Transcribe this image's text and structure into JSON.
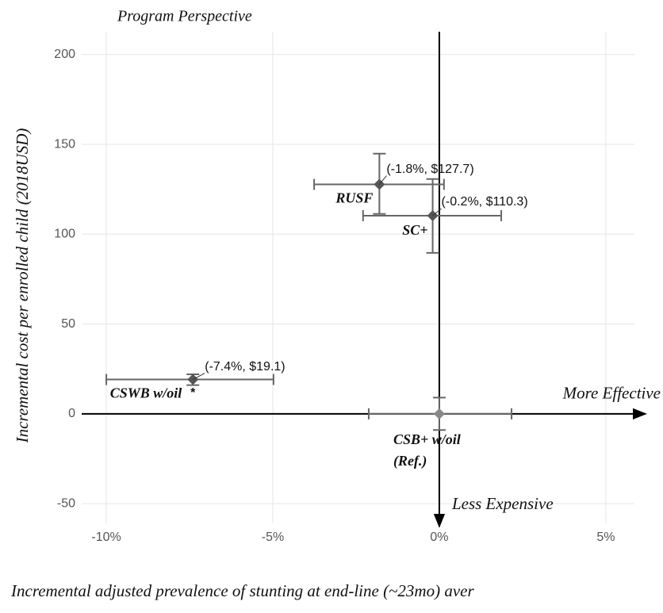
{
  "chart_data": {
    "type": "scatter",
    "title": "Program Perspective",
    "x_label": "Incremental adjusted prevalence of stunting at end-line (~23mo) aver",
    "y_label": "Incremental cost per enrolled child (2018USD)",
    "annotations": {
      "x_direction": "More Effective",
      "y_direction": "Less Expensive",
      "significance": "*"
    },
    "xlim": [
      -10.74,
      5.86
    ],
    "ylim": [
      -61,
      212.7
    ],
    "xticks": [
      {
        "value": -10,
        "label": "-10%"
      },
      {
        "value": -5,
        "label": "-5%"
      },
      {
        "value": 0,
        "label": "0%"
      },
      {
        "value": 5,
        "label": "5%"
      }
    ],
    "yticks": [
      -50,
      0,
      50,
      100,
      150,
      200
    ],
    "grid": true,
    "points": [
      {
        "name": "RUSF",
        "color": "#555555",
        "x": -1.8,
        "y": 127.7,
        "x_low": -3.76,
        "x_high": 0.14,
        "y_low": 111.3,
        "y_high": 144.8,
        "value_label": "(-1.8%, $127.7)"
      },
      {
        "name": "SC+",
        "color": "#555555",
        "x": -0.2,
        "y": 110.3,
        "x_low": -2.29,
        "x_high": 1.86,
        "y_low": 89.6,
        "y_high": 130.7,
        "value_label": "(-0.2%, $110.3)"
      },
      {
        "name": "CSWB w/oil",
        "color": "#555555",
        "x": -7.4,
        "y": 19.1,
        "x_low": -10,
        "x_high": -4.98,
        "y_low": 16,
        "y_high": 22,
        "value_label": "(-7.4%, $19.1)"
      },
      {
        "name": "CSB+ w/oil",
        "name_line2": "(Ref.)",
        "color": "#888888",
        "x": 0,
        "y": 0,
        "x_low": -2.12,
        "x_high": 2.17,
        "y_low": -9,
        "y_high": 9
      }
    ]
  }
}
